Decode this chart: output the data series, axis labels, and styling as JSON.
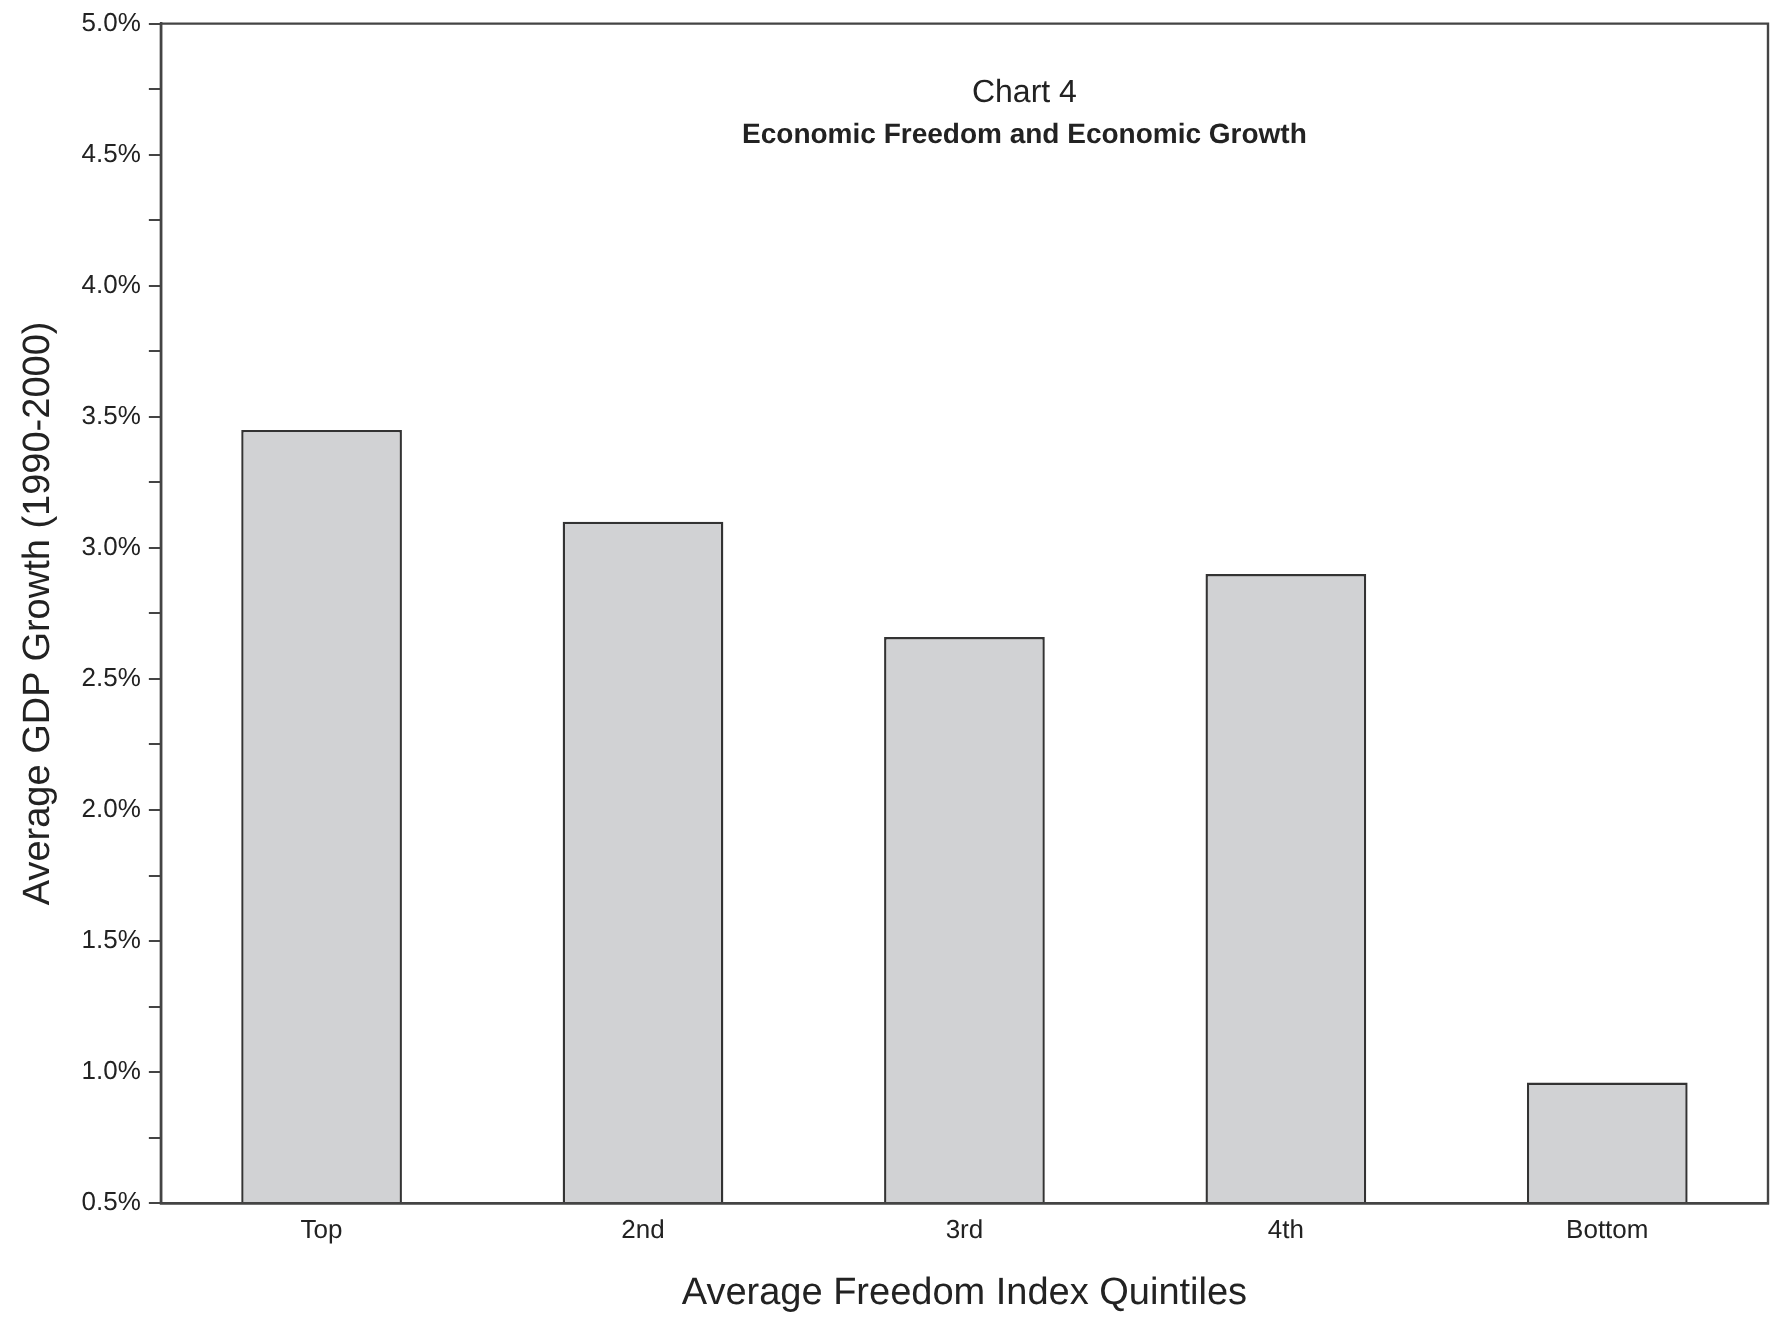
{
  "chart_data": {
    "type": "bar",
    "title": "Chart 4",
    "subtitle": "Economic Freedom and Economic Growth",
    "xlabel": "Average Freedom Index Quintiles",
    "ylabel": "Average GDP Growth (1990-2000)",
    "categories": [
      "Top",
      "2nd",
      "3rd",
      "4th",
      "Bottom"
    ],
    "series": [
      {
        "color": "#d1d2d4",
        "values": [
          3.45,
          3.1,
          2.66,
          2.9,
          0.96
        ]
      }
    ],
    "ylim": [
      0.5,
      5.0
    ],
    "yticks": [
      {
        "value": 0.5,
        "label": "0.5%"
      },
      {
        "value": 0.75,
        "label": null
      },
      {
        "value": 1.0,
        "label": "1.0%"
      },
      {
        "value": 1.25,
        "label": null
      },
      {
        "value": 1.5,
        "label": "1.5%"
      },
      {
        "value": 1.75,
        "label": null
      },
      {
        "value": 2.0,
        "label": "2.0%"
      },
      {
        "value": 2.25,
        "label": null
      },
      {
        "value": 2.5,
        "label": "2.5%"
      },
      {
        "value": 2.75,
        "label": null
      },
      {
        "value": 3.0,
        "label": "3.0%"
      },
      {
        "value": 3.25,
        "label": null
      },
      {
        "value": 3.5,
        "label": "3.5%"
      },
      {
        "value": 3.75,
        "label": null
      },
      {
        "value": 4.0,
        "label": "4.0%"
      },
      {
        "value": 4.25,
        "label": null
      },
      {
        "value": 4.5,
        "label": "4.5%"
      },
      {
        "value": 4.75,
        "label": null
      },
      {
        "value": 5.0,
        "label": "5.0%"
      }
    ],
    "grid": false,
    "legend": false
  }
}
